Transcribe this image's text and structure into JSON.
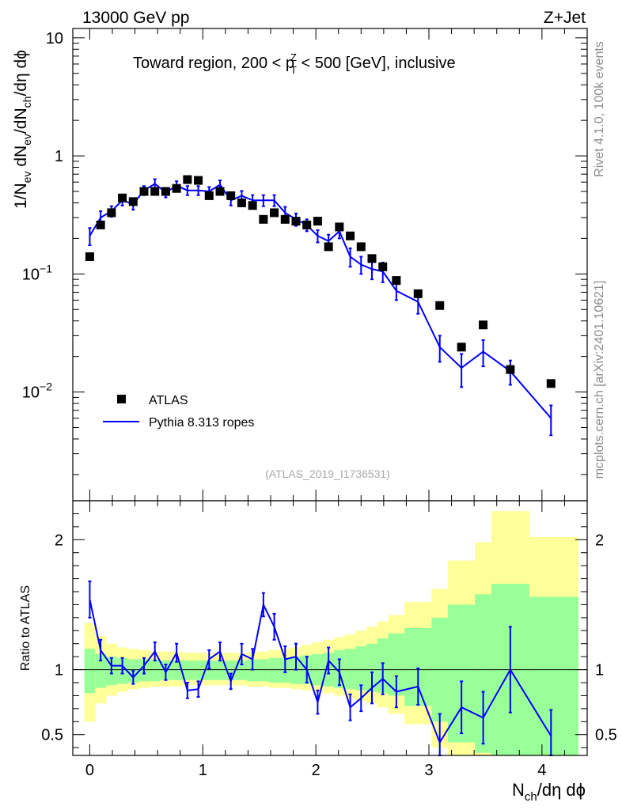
{
  "header": {
    "left": "13000 GeV pp",
    "right": "Z+Jet"
  },
  "side_labels": {
    "rivet": "Rivet 4.1.0,  100k events",
    "mcplots": "mcplots.cern.ch [arXiv:2401.10621]"
  },
  "colors": {
    "mc": "#0000ff",
    "data": "#000000",
    "band_inner": "#99ff99",
    "band_outer": "#ffff99"
  },
  "chart_data": [
    {
      "type": "scatter",
      "panel": "main",
      "title": "Toward region, 200 < p_T^Z < 500 [GeV], inclusive",
      "title_parts": {
        "pre": "Toward region, 200 < p",
        "sup": "Z",
        "sub": "T",
        "post": " < 500 [GeV], inclusive"
      },
      "ylabel": "1/N_ev dN_ev/dN_ch/dη dϕ",
      "ylabel_parts": {
        "a": "1/N",
        "a_sub": "ev",
        "b": " dN",
        "b_sub": "ev",
        "c": "/dN",
        "c_sub": "ch",
        "d": "/dη dϕ"
      },
      "yscale": "log",
      "ylim": [
        0.0012,
        12
      ],
      "xlim": [
        -0.15,
        4.4
      ],
      "yticks": [
        {
          "value": 10,
          "label": "10"
        },
        {
          "value": 1,
          "label": "1"
        },
        {
          "value": 0.1,
          "label": "10",
          "exp": "−1"
        },
        {
          "value": 0.01,
          "label": "10",
          "exp": "−2"
        }
      ],
      "watermark": "(ATLAS_2019_I1736531)",
      "legend": {
        "position": "bottom-left",
        "data_label": "ATLAS",
        "mc_label": "Pythia 8.313 ropes"
      },
      "series": [
        {
          "name": "ATLAS",
          "style": "markers",
          "x": [
            0.0,
            0.096,
            0.192,
            0.288,
            0.384,
            0.48,
            0.576,
            0.672,
            0.768,
            0.864,
            0.96,
            1.056,
            1.152,
            1.248,
            1.344,
            1.44,
            1.536,
            1.632,
            1.728,
            1.824,
            1.92,
            2.016,
            2.112,
            2.208,
            2.304,
            2.4,
            2.496,
            2.592,
            2.712,
            2.904,
            3.096,
            3.288,
            3.48,
            3.72,
            4.08
          ],
          "y": [
            0.14,
            0.26,
            0.33,
            0.44,
            0.41,
            0.5,
            0.5,
            0.5,
            0.53,
            0.63,
            0.62,
            0.46,
            0.5,
            0.46,
            0.4,
            0.38,
            0.29,
            0.33,
            0.29,
            0.28,
            0.26,
            0.28,
            0.17,
            0.25,
            0.21,
            0.17,
            0.135,
            0.115,
            0.088,
            0.068,
            0.054,
            0.024,
            0.037,
            0.0155,
            0.0118
          ]
        },
        {
          "name": "Pythia 8.313 ropes",
          "style": "line",
          "x": [
            0.0,
            0.096,
            0.192,
            0.288,
            0.384,
            0.48,
            0.576,
            0.672,
            0.768,
            0.864,
            0.96,
            1.056,
            1.152,
            1.248,
            1.344,
            1.44,
            1.536,
            1.632,
            1.728,
            1.824,
            1.92,
            2.016,
            2.112,
            2.208,
            2.304,
            2.4,
            2.496,
            2.592,
            2.712,
            2.904,
            3.096,
            3.288,
            3.48,
            3.72,
            4.08
          ],
          "y": [
            0.21,
            0.3,
            0.34,
            0.42,
            0.39,
            0.51,
            0.58,
            0.49,
            0.56,
            0.51,
            0.51,
            0.5,
            0.57,
            0.42,
            0.46,
            0.42,
            0.42,
            0.42,
            0.33,
            0.29,
            0.26,
            0.21,
            0.19,
            0.23,
            0.14,
            0.12,
            0.11,
            0.105,
            0.072,
            0.058,
            0.024,
            0.016,
            0.022,
            0.015,
            0.006
          ],
          "err": [
            0.035,
            0.04,
            0.035,
            0.04,
            0.04,
            0.045,
            0.055,
            0.045,
            0.05,
            0.045,
            0.045,
            0.045,
            0.05,
            0.04,
            0.045,
            0.045,
            0.045,
            0.045,
            0.04,
            0.035,
            0.03,
            0.025,
            0.025,
            0.03,
            0.025,
            0.02,
            0.02,
            0.02,
            0.012,
            0.012,
            0.006,
            0.005,
            0.0055,
            0.0035,
            0.0017
          ]
        }
      ]
    },
    {
      "type": "line",
      "panel": "ratio",
      "ylabel": "Ratio to ATLAS",
      "xlabel": "N_ch/dη dϕ",
      "xlabel_parts": {
        "a": "N",
        "a_sub": "ch",
        "b": "/dη dϕ"
      },
      "xlim": [
        -0.15,
        4.4
      ],
      "ylim": [
        0.34,
        2.3
      ],
      "yticks": [
        0.5,
        1,
        2
      ],
      "xticks": [
        0,
        1,
        2,
        3,
        4
      ],
      "reference": 1,
      "bands": {
        "edges": [
          -0.048,
          0.048,
          0.144,
          0.24,
          0.336,
          0.432,
          0.528,
          0.624,
          0.72,
          0.816,
          0.912,
          1.008,
          1.104,
          1.2,
          1.296,
          1.392,
          1.488,
          1.584,
          1.68,
          1.776,
          1.872,
          1.968,
          2.064,
          2.16,
          2.256,
          2.352,
          2.448,
          2.544,
          2.64,
          2.784,
          3.024,
          3.168,
          3.408,
          3.552,
          3.888,
          4.32
        ],
        "inner_lo": [
          0.82,
          0.86,
          0.88,
          0.89,
          0.9,
          0.91,
          0.91,
          0.92,
          0.92,
          0.92,
          0.92,
          0.92,
          0.92,
          0.92,
          0.92,
          0.91,
          0.91,
          0.9,
          0.9,
          0.89,
          0.89,
          0.88,
          0.87,
          0.86,
          0.85,
          0.84,
          0.83,
          0.82,
          0.8,
          0.72,
          0.6,
          0.44,
          0.36,
          0.34,
          0.34
        ],
        "inner_hi": [
          1.16,
          1.12,
          1.1,
          1.09,
          1.08,
          1.08,
          1.08,
          1.07,
          1.07,
          1.07,
          1.07,
          1.07,
          1.07,
          1.07,
          1.07,
          1.08,
          1.08,
          1.09,
          1.09,
          1.1,
          1.11,
          1.12,
          1.13,
          1.15,
          1.16,
          1.18,
          1.2,
          1.24,
          1.28,
          1.32,
          1.4,
          1.5,
          1.58,
          1.66,
          1.56
        ],
        "outer_lo": [
          0.6,
          0.74,
          0.8,
          0.83,
          0.85,
          0.86,
          0.87,
          0.87,
          0.87,
          0.88,
          0.88,
          0.88,
          0.88,
          0.88,
          0.88,
          0.87,
          0.87,
          0.86,
          0.86,
          0.85,
          0.84,
          0.83,
          0.82,
          0.8,
          0.78,
          0.76,
          0.74,
          0.71,
          0.66,
          0.58,
          0.4,
          0.34,
          0.34,
          0.34,
          0.52
        ],
        "outer_hi": [
          1.36,
          1.26,
          1.2,
          1.17,
          1.16,
          1.15,
          1.14,
          1.14,
          1.14,
          1.13,
          1.13,
          1.13,
          1.13,
          1.13,
          1.13,
          1.14,
          1.14,
          1.15,
          1.16,
          1.17,
          1.19,
          1.21,
          1.23,
          1.25,
          1.27,
          1.3,
          1.33,
          1.37,
          1.42,
          1.52,
          1.62,
          1.84,
          1.98,
          2.22,
          2.02
        ]
      },
      "series": [
        {
          "name": "Pythia 8.313 ropes / ATLAS",
          "x": [
            0.0,
            0.096,
            0.192,
            0.288,
            0.384,
            0.48,
            0.576,
            0.672,
            0.768,
            0.864,
            0.96,
            1.056,
            1.152,
            1.248,
            1.344,
            1.44,
            1.536,
            1.632,
            1.728,
            1.824,
            1.92,
            2.016,
            2.112,
            2.208,
            2.304,
            2.4,
            2.496,
            2.592,
            2.712,
            2.904,
            3.096,
            3.288,
            3.48,
            3.72,
            4.08
          ],
          "y": [
            1.54,
            1.15,
            1.03,
            1.03,
            0.94,
            1.03,
            1.14,
            0.98,
            1.13,
            0.84,
            0.85,
            1.08,
            1.14,
            0.91,
            1.12,
            1.08,
            1.5,
            1.33,
            1.08,
            1.1,
            1.0,
            0.75,
            1.07,
            0.98,
            0.71,
            0.78,
            0.86,
            0.93,
            0.83,
            0.87,
            0.44,
            0.71,
            0.63,
            1.0,
            0.49
          ],
          "err": [
            0.14,
            0.08,
            0.06,
            0.06,
            0.05,
            0.06,
            0.07,
            0.06,
            0.07,
            0.06,
            0.06,
            0.07,
            0.07,
            0.06,
            0.08,
            0.08,
            0.09,
            0.1,
            0.1,
            0.1,
            0.1,
            0.09,
            0.1,
            0.1,
            0.1,
            0.1,
            0.12,
            0.12,
            0.12,
            0.14,
            0.22,
            0.2,
            0.2,
            0.33,
            0.2
          ]
        }
      ]
    }
  ]
}
